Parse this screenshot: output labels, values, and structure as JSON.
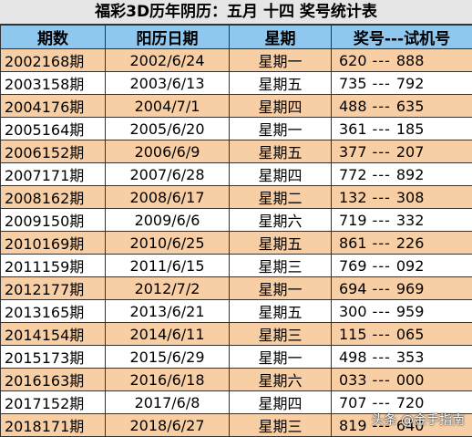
{
  "title": "福彩3D历年阴历：五月  十四  奖号统计表",
  "headers": [
    "期数",
    "阳历日期",
    "星期",
    "奖号---试机号"
  ],
  "rows": [
    {
      "issue": "2002168期",
      "date": "2002/6/24",
      "weekday": "星期一",
      "prize": "620",
      "sep": "---",
      "test": "888"
    },
    {
      "issue": "2003158期",
      "date": "2003/6/13",
      "weekday": "星期五",
      "prize": "735",
      "sep": "---",
      "test": "792"
    },
    {
      "issue": "2004176期",
      "date": "2004/7/1",
      "weekday": "星期四",
      "prize": "488",
      "sep": "---",
      "test": "635"
    },
    {
      "issue": "2005164期",
      "date": "2005/6/20",
      "weekday": "星期一",
      "prize": "361",
      "sep": "---",
      "test": "185"
    },
    {
      "issue": "2006152期",
      "date": "2006/6/9",
      "weekday": "星期五",
      "prize": "377",
      "sep": "---",
      "test": "207"
    },
    {
      "issue": "2007171期",
      "date": "2007/6/28",
      "weekday": "星期四",
      "prize": "772",
      "sep": "---",
      "test": "892"
    },
    {
      "issue": "2008162期",
      "date": "2008/6/17",
      "weekday": "星期二",
      "prize": "132",
      "sep": "---",
      "test": "308"
    },
    {
      "issue": "2009150期",
      "date": "2009/6/6",
      "weekday": "星期六",
      "prize": "719",
      "sep": "---",
      "test": "332"
    },
    {
      "issue": "2010169期",
      "date": "2010/6/25",
      "weekday": "星期五",
      "prize": "861",
      "sep": "---",
      "test": "226"
    },
    {
      "issue": "2011159期",
      "date": "2011/6/15",
      "weekday": "星期三",
      "prize": "769",
      "sep": "---",
      "test": "092"
    },
    {
      "issue": "2012177期",
      "date": "2012/7/2",
      "weekday": "星期一",
      "prize": "694",
      "sep": "---",
      "test": "969"
    },
    {
      "issue": "2013165期",
      "date": "2013/6/21",
      "weekday": "星期五",
      "prize": "300",
      "sep": "---",
      "test": "959"
    },
    {
      "issue": "2014154期",
      "date": "2014/6/11",
      "weekday": "星期三",
      "prize": "115",
      "sep": "---",
      "test": "065"
    },
    {
      "issue": "2015173期",
      "date": "2015/6/29",
      "weekday": "星期一",
      "prize": "498",
      "sep": "---",
      "test": "353"
    },
    {
      "issue": "2016163期",
      "date": "2016/6/18",
      "weekday": "星期六",
      "prize": "033",
      "sep": "---",
      "test": "000"
    },
    {
      "issue": "2017152期",
      "date": "2017/6/8",
      "weekday": "星期四",
      "prize": "707",
      "sep": "---",
      "test": "720"
    },
    {
      "issue": "2018171期",
      "date": "2018/6/27",
      "weekday": "星期三",
      "prize": "819",
      "sep": "---",
      "test": "640"
    }
  ],
  "watermark": "头条 @金手指南",
  "colors": {
    "header_bg": "#8fc7ee",
    "odd_row_bg": "#f8cfa5",
    "even_row_bg": "#ffffff",
    "title_bg": "#e6e6e6"
  }
}
